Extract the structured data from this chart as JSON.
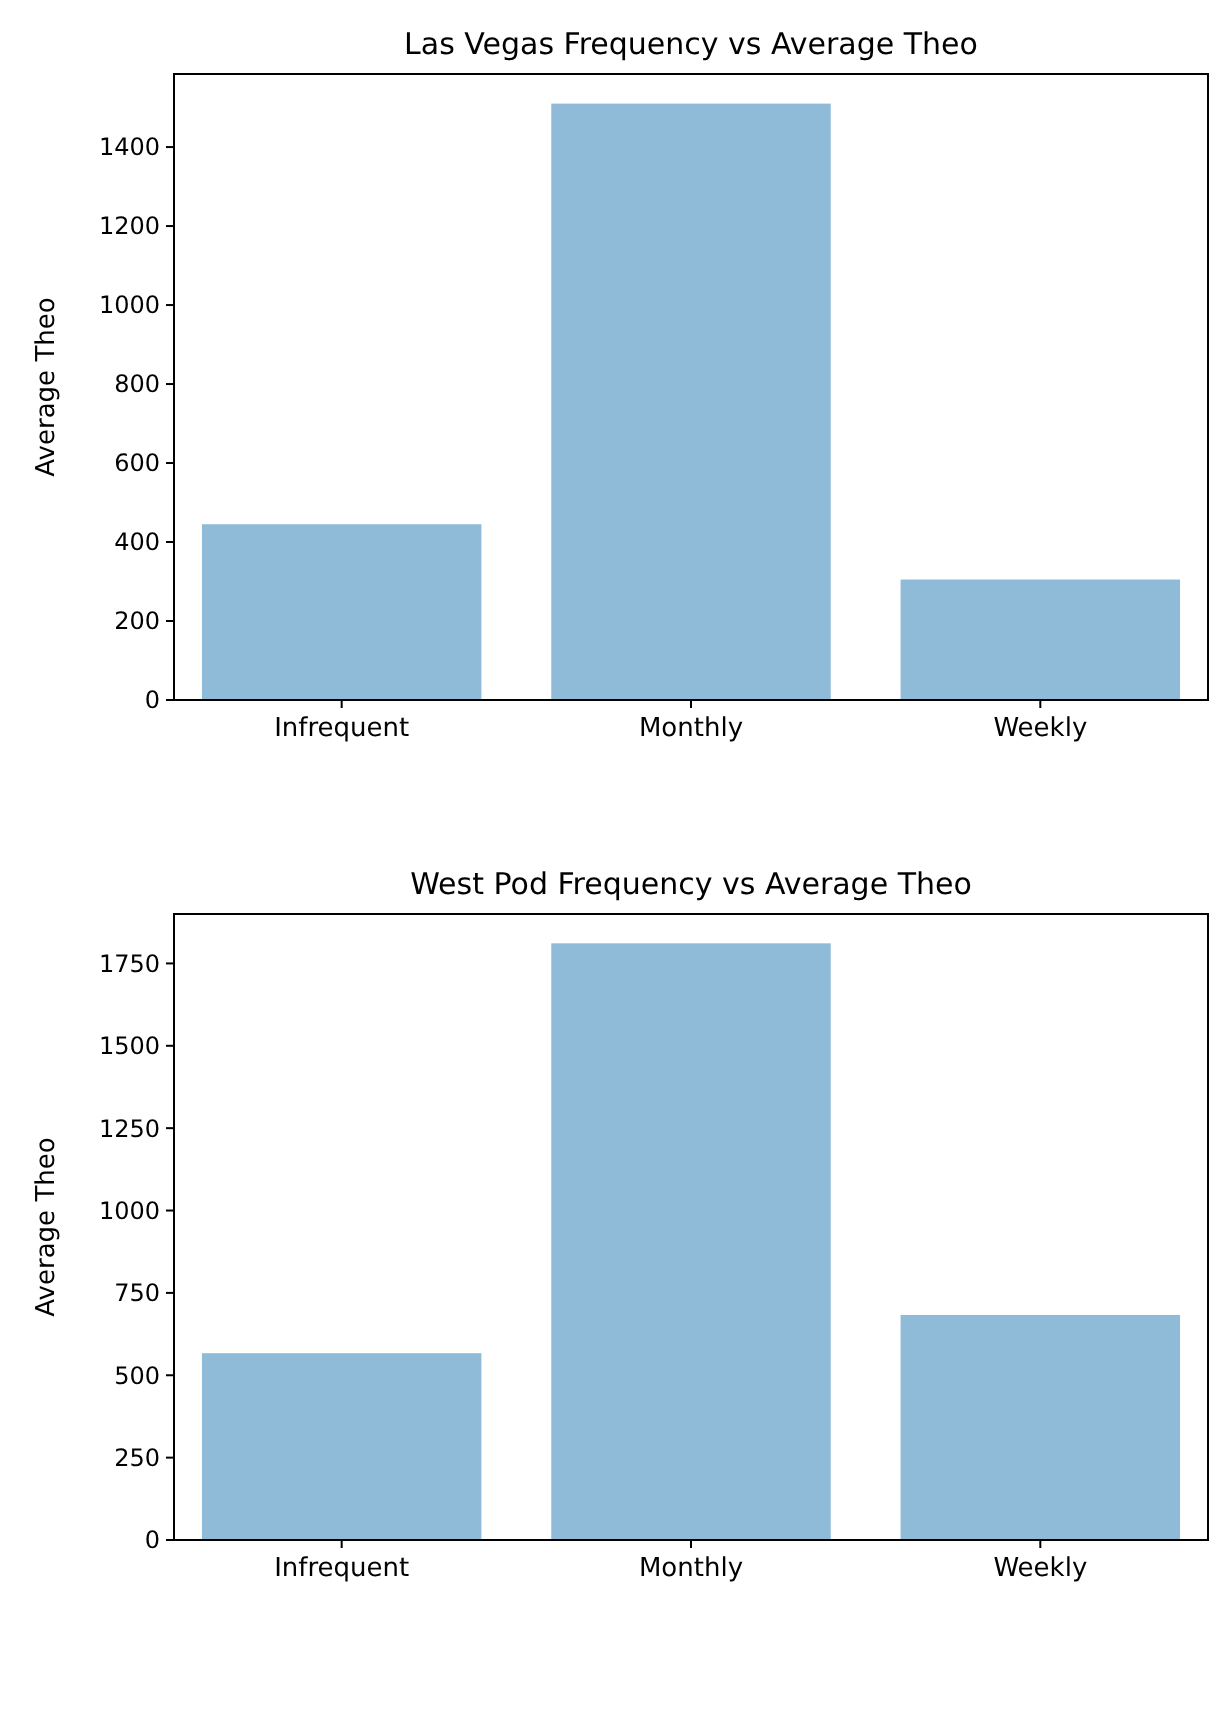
{
  "chart_data": [
    {
      "type": "bar",
      "title": "Las Vegas Frequency vs Average Theo",
      "ylabel": "Average Theo",
      "categories": [
        "Infrequent",
        "Monthly",
        "Weekly"
      ],
      "values": [
        445,
        1510,
        305
      ],
      "color": "#8fbbd9",
      "ylim": [
        0,
        1585
      ],
      "yticks": [
        0,
        200,
        400,
        600,
        800,
        1000,
        1200,
        1400
      ],
      "grid": false
    },
    {
      "type": "bar",
      "title": "West Pod Frequency vs Average Theo",
      "ylabel": "Average Theo",
      "categories": [
        "Infrequent",
        "Monthly",
        "Weekly"
      ],
      "values": [
        567,
        1811,
        683
      ],
      "color": "#8fbbd9",
      "ylim": [
        0,
        1900
      ],
      "yticks": [
        0,
        250,
        500,
        750,
        1000,
        1250,
        1500,
        1750
      ],
      "grid": false
    }
  ]
}
